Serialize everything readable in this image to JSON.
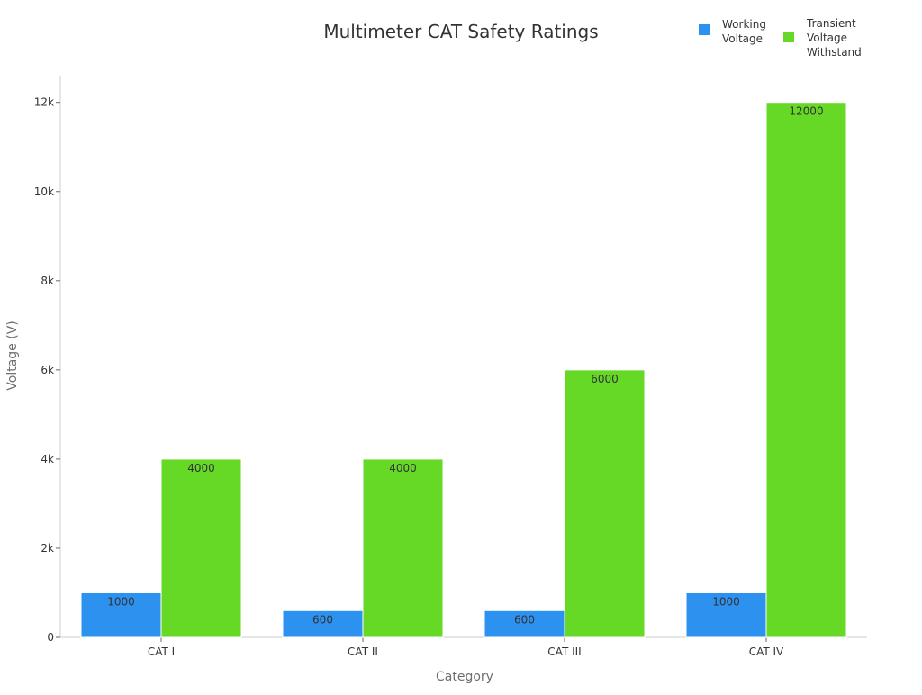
{
  "chart_data": {
    "type": "bar",
    "title": "Multimeter CAT Safety Ratings",
    "xlabel": "Category",
    "ylabel": "Voltage (V)",
    "categories": [
      "CAT I",
      "CAT II",
      "CAT III",
      "CAT IV"
    ],
    "series": [
      {
        "name": "Working Voltage",
        "name_lines": [
          "Working",
          "Voltage"
        ],
        "color": "#2d91f0",
        "values": [
          1000,
          600,
          600,
          1000
        ],
        "labels": [
          "1000",
          "600",
          "600",
          "1000"
        ]
      },
      {
        "name": "Transient Voltage Withstand",
        "name_lines": [
          "Transient",
          "Voltage",
          "Withstand"
        ],
        "color": "#66d926",
        "values": [
          4000,
          4000,
          6000,
          12000
        ],
        "labels": [
          "4000",
          "4000",
          "6000",
          "12000"
        ]
      }
    ],
    "ylim": [
      0,
      12600
    ],
    "yticks": [
      0,
      2000,
      4000,
      6000,
      8000,
      10000,
      12000
    ],
    "ytick_labels": [
      "0",
      "2k",
      "4k",
      "6k",
      "8k",
      "10k",
      "12k"
    ],
    "grid": false,
    "legend_position": "top-right"
  }
}
